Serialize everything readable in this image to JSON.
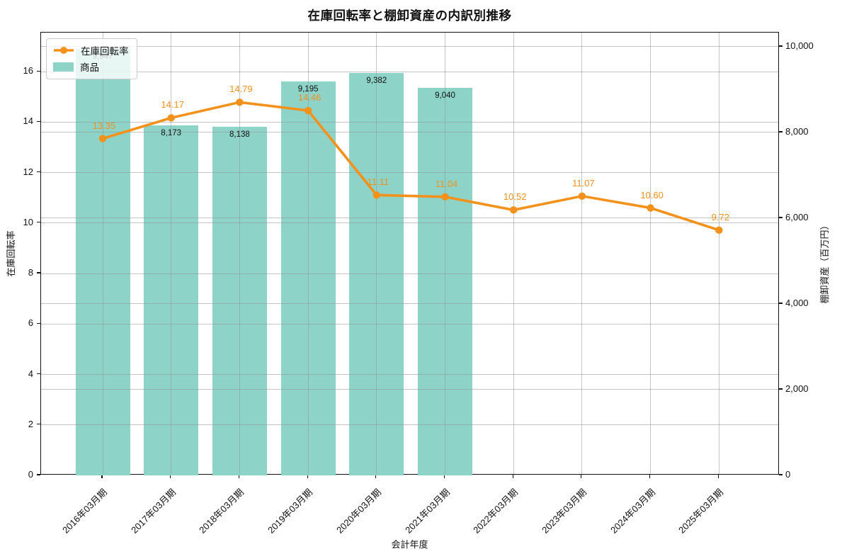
{
  "chart_data": {
    "type": "line+bar combo (dual axis)",
    "title": "在庫回転率と棚卸資産の内訳別推移",
    "xlabel": "会計年度",
    "ylabel_left": "在庫回転率",
    "ylabel_right": "棚卸資産（百万円）",
    "categories": [
      "2016年03月期",
      "2017年03月期",
      "2018年03月期",
      "2019年03月期",
      "2020年03月期",
      "2021年03月期",
      "2022年03月期",
      "2023年03月期",
      "2024年03月期",
      "2025年03月期"
    ],
    "series": [
      {
        "name": "在庫回転率",
        "type": "line",
        "axis": "left",
        "color": "#f2921d",
        "values": [
          13.35,
          14.17,
          14.79,
          14.46,
          11.11,
          11.04,
          10.52,
          11.07,
          10.6,
          9.72
        ],
        "labels": [
          "13.35",
          "14.17",
          "14.79",
          "14.46",
          "11.11",
          "11.04",
          "10.52",
          "11.07",
          "10.60",
          "9.72"
        ]
      },
      {
        "name": "商品",
        "type": "bar",
        "axis": "right",
        "color": "#8dd3c7",
        "values": [
          9947,
          8173,
          8138,
          9195,
          9382,
          9040,
          null,
          null,
          null,
          null
        ],
        "labels": [
          "9,947",
          "8,173",
          "8,138",
          "9,195",
          "9,382",
          "9,040",
          "",
          "",
          "",
          ""
        ]
      }
    ],
    "left_axis": {
      "ticks": [
        0,
        2,
        4,
        6,
        8,
        10,
        12,
        14,
        16
      ],
      "tick_labels": [
        "0",
        "2",
        "4",
        "6",
        "8",
        "10",
        "12",
        "14",
        "16"
      ],
      "max": 17.55
    },
    "right_axis": {
      "ticks": [
        0,
        2000,
        4000,
        6000,
        8000,
        10000
      ],
      "tick_labels": [
        "0",
        "2,000",
        "4,000",
        "6,000",
        "8,000",
        "10,000"
      ],
      "max": 10330
    },
    "grid": true,
    "legend_position": "upper-left"
  }
}
